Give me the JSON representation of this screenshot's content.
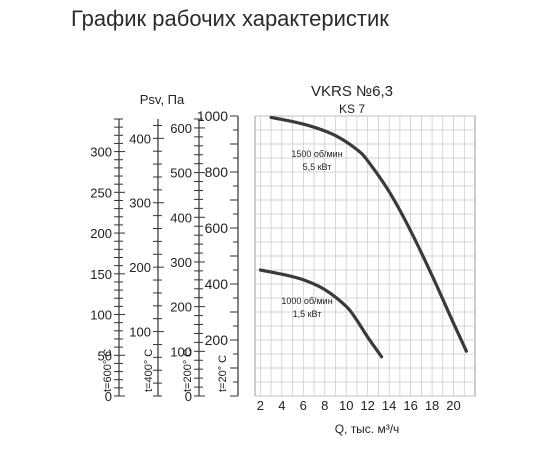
{
  "page_title": "График рабочих характеристик",
  "chart_data": {
    "type": "line",
    "title": "VKRS №6,3",
    "subtitle": "KS 7",
    "xlabel": "Q, тыс. м³/ч",
    "x_ticks": [
      2,
      4,
      6,
      8,
      10,
      12,
      14,
      16,
      18,
      20
    ],
    "xlim": [
      1.5,
      22
    ],
    "main_axis": {
      "label": "t=20° C",
      "ylim": [
        0,
        1000
      ],
      "ticks": [
        200,
        400,
        600,
        800,
        1000
      ]
    },
    "secondary_axes": [
      {
        "label": "t=600° C",
        "ylim": [
          0,
          340
        ],
        "ticks": [
          0,
          50,
          100,
          150,
          200,
          250,
          300
        ]
      },
      {
        "label": "t=400° C",
        "ylim": [
          0,
          430
        ],
        "ticks": [
          100,
          200,
          300,
          400
        ]
      },
      {
        "label": "t=200° C",
        "ylim": [
          0,
          620
        ],
        "ticks": [
          0,
          100,
          200,
          300,
          400,
          500,
          600
        ]
      }
    ],
    "ylabel": "Psv, Па",
    "grid": true,
    "series": [
      {
        "name": "1500 об/мин",
        "annotation_lines": [
          "1500 об/мин",
          "5,5 кВт"
        ],
        "x": [
          3,
          5,
          7,
          9,
          11,
          12,
          14,
          16,
          18,
          20,
          21.2
        ],
        "y": [
          995,
          980,
          960,
          930,
          880,
          840,
          730,
          590,
          430,
          260,
          160
        ]
      },
      {
        "name": "1000 об/мин",
        "annotation_lines": [
          "1000 об/мин",
          "1,5 кВт"
        ],
        "x": [
          2,
          4,
          6,
          8,
          10,
          11,
          12,
          13.3
        ],
        "y": [
          450,
          435,
          415,
          380,
          320,
          270,
          210,
          140
        ]
      }
    ]
  }
}
